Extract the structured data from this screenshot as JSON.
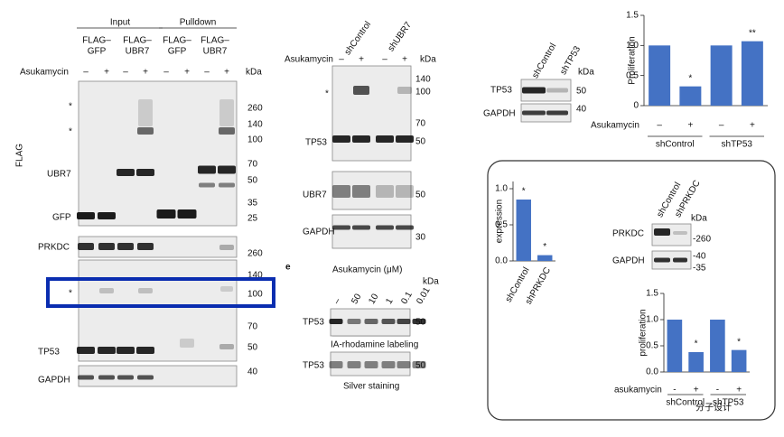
{
  "panel_left": {
    "groups": [
      "Input",
      "Pulldown"
    ],
    "columns": [
      [
        "FLAG–",
        "GFP"
      ],
      [
        "FLAG–",
        "UBR7"
      ],
      [
        "FLAG–",
        "GFP"
      ],
      [
        "FLAG–",
        "UBR7"
      ]
    ],
    "treatment": "Asukamycin",
    "signs": [
      "–",
      "+",
      "–",
      "+",
      "–",
      "+",
      "–",
      "+"
    ],
    "kda": "kDa",
    "side_label": "FLAG",
    "rows": [
      "*",
      "*",
      "UBR7",
      "GFP",
      "PRKDC",
      "*",
      "TP53",
      "GAPDH"
    ],
    "markers": [
      "260",
      "140",
      "100",
      "70",
      "50",
      "35",
      "25",
      "260",
      "140",
      "100",
      "70",
      "50",
      "40"
    ]
  },
  "panel_middle": {
    "conditions": [
      "shControl",
      "shUBR7"
    ],
    "treatment": "Asukamycin",
    "signs": [
      "–",
      "+",
      "–",
      "+"
    ],
    "kda": "kDa",
    "rows": [
      "*",
      "TP53",
      "UBR7",
      "GAPDH"
    ],
    "markers": [
      "140",
      "100",
      "70",
      "50",
      "50",
      "30"
    ]
  },
  "panel_e": {
    "letter": "e",
    "treatment": "Asukamycin (μM)",
    "doses": [
      "–",
      "50",
      "10",
      "1",
      "0.1",
      "0.01"
    ],
    "kda": "kDa",
    "rows": [
      "TP53",
      "TP53"
    ],
    "markers": [
      "50",
      "50"
    ],
    "captions": [
      "IA-rhodamine labeling",
      "Silver staining"
    ]
  },
  "panel_tp53": {
    "conditions": [
      "shControl",
      "shTP53"
    ],
    "kda": "kDa",
    "rows": [
      "TP53",
      "GAPDH"
    ],
    "markers": [
      "50",
      "40"
    ]
  },
  "panel_prkdc": {
    "conditions": [
      "shControl",
      "shPRKDC"
    ],
    "kda": "kDa",
    "rows": [
      "PRKDC",
      "GAPDH"
    ],
    "markers": [
      "-260",
      "-40",
      "-35"
    ]
  },
  "watermark": "分子设计",
  "chart_data": [
    {
      "type": "bar",
      "ylabel": "Proliferation",
      "xlabel": "Asukamycin",
      "categories": [
        "–",
        "+",
        "–",
        "+"
      ],
      "groups": [
        "shControl",
        "shTP53"
      ],
      "values": [
        1.0,
        0.32,
        1.0,
        1.07
      ],
      "significance": [
        null,
        "*",
        null,
        "**"
      ],
      "color": "#4472c4",
      "ylim": [
        0,
        1.5
      ],
      "yticks": [
        0,
        0.5,
        {
          "value": 1,
          "label": "1.0"
        },
        1.5
      ]
    },
    {
      "type": "bar",
      "ylabel": "expression",
      "categories": [
        "shControl",
        "shPRKDC"
      ],
      "values": [
        0.85,
        0.08
      ],
      "significance": [
        "*",
        "*"
      ],
      "color": "#4472c4",
      "ylim": [
        0,
        1.1
      ],
      "yticks": [
        {
          "value": 0,
          "label": "0.0"
        },
        0.5,
        {
          "value": 1,
          "label": "1.0"
        }
      ]
    },
    {
      "type": "bar",
      "ylabel": "proliferation",
      "xlabel": "asukamycin",
      "categories": [
        "-",
        "+",
        "-",
        "+"
      ],
      "groups": [
        "shControl",
        "shTP53"
      ],
      "values": [
        1.0,
        0.38,
        1.0,
        0.42
      ],
      "significance": [
        null,
        "*",
        null,
        "*"
      ],
      "color": "#4472c4",
      "ylim": [
        0,
        1.5
      ],
      "yticks": [
        {
          "value": 0,
          "label": "0.0"
        },
        0.5,
        {
          "value": 1,
          "label": "1.0"
        },
        1.5
      ]
    }
  ]
}
